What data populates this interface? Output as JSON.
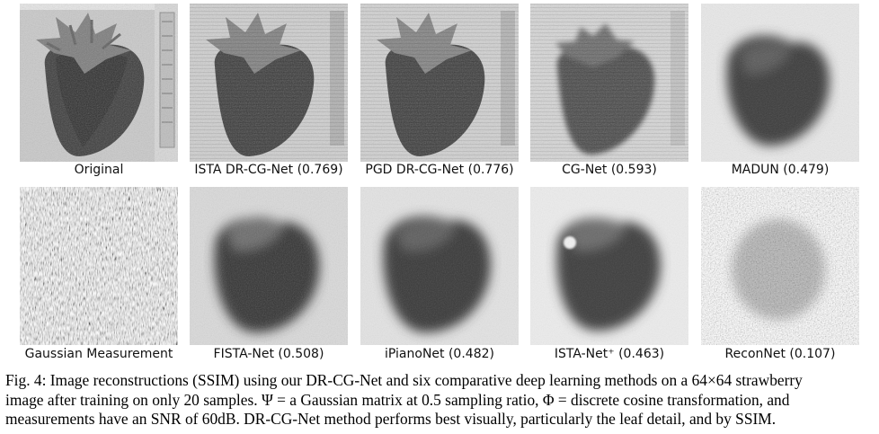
{
  "panels_row1": [
    {
      "label": "Original"
    },
    {
      "label": "ISTA DR-CG-Net (0.769)"
    },
    {
      "label": "PGD DR-CG-Net (0.776)"
    },
    {
      "label": "CG-Net (0.593)"
    },
    {
      "label": "MADUN (0.479)"
    }
  ],
  "panels_row2": [
    {
      "label": "Gaussian Measurement"
    },
    {
      "label": "FISTA-Net (0.508)"
    },
    {
      "label": "iPianoNet (0.482)"
    },
    {
      "label": "ISTA-Net⁺ (0.463)"
    },
    {
      "label": "ReconNet (0.107)"
    }
  ],
  "caption": {
    "line1": "Fig. 4: Image reconstructions (SSIM) using our DR-CG-Net and six comparative deep learning methods on a 64×64 strawberry",
    "line2": "image after training on only 20 samples. Ψ = a Gaussian matrix at 0.5 sampling ratio, Φ = discrete cosine transformation, and",
    "line3": "measurements have an SNR of 60dB. DR-CG-Net method performs best visually, particularly the leaf detail, and by SSIM."
  }
}
